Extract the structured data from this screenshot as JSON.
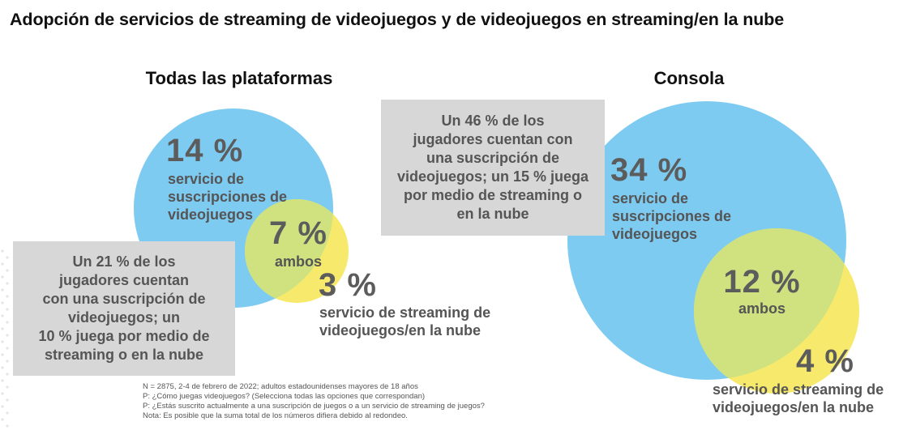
{
  "title": "Adopción de servicios de streaming de videojuegos y de videojuegos en streaming/en la nube",
  "colors": {
    "subscription": "#7ecbf2",
    "streaming": "#f7e96b",
    "overlap": "#cfe27f",
    "callout": "#d7d7d7"
  },
  "chart_data": [
    {
      "type": "venn",
      "title": "Todas las plataformas",
      "sets": [
        {
          "name": "servicio de suscripciones de videojuegos",
          "value": 14,
          "value_label": "14 %"
        },
        {
          "name": "servicio de streaming de videojuegos/en la nube",
          "value": 3,
          "value_label": "3 %"
        }
      ],
      "intersection": {
        "name": "ambos",
        "value": 7,
        "value_label": "7 %"
      },
      "callout": "Un 21 % de los jugadores cuentan con una suscripción de videojuegos; un 10 % juega por medio de streaming o en la nube"
    },
    {
      "type": "venn",
      "title": "Consola",
      "sets": [
        {
          "name": "servicio de suscripciones de videojuegos",
          "value": 34,
          "value_label": "34 %"
        },
        {
          "name": "servicio de streaming de videojuegos/en la nube",
          "value": 4,
          "value_label": "4 %"
        }
      ],
      "intersection": {
        "name": "ambos",
        "value": 12,
        "value_label": "12 %"
      },
      "callout": "Un 46 % de los jugadores cuentan con una suscripción de videojuegos; un 15 % juega por medio de streaming o en la nube"
    }
  ],
  "panels": {
    "left": {
      "title": "Todas las plataformas",
      "sub_pct": "14 %",
      "sub_label": "servicio de\nsuscripciones de\nvideojuegos",
      "both_pct": "7 %",
      "both_label": "ambos",
      "stream_pct": "3 %",
      "stream_label": "servicio de streaming de\nvideojuegos/en la nube",
      "callout": "Un 21 % de los\njugadores cuentan\ncon una suscripción de\nvideojuegos; un\n10 % juega por medio de\nstreaming o en la nube"
    },
    "right": {
      "title": "Consola",
      "sub_pct": "34 %",
      "sub_label": "servicio de\nsuscripciones de\nvideojuegos",
      "both_pct": "12 %",
      "both_label": "ambos",
      "stream_pct": "4 %",
      "stream_label": "servicio de streaming de\nvideojuegos/en la nube",
      "callout": "Un 46 % de los\njugadores cuentan con\nuna suscripción de\nvideojuegos; un 15 % juega\npor medio de streaming o\nen la nube"
    }
  },
  "footnotes": [
    "N = 2875, 2-4 de febrero de 2022; adultos estadounidenses mayores de 18 años",
    "P: ¿Cómo juegas videojuegos? (Selecciona todas las opciones que correspondan)",
    "P: ¿Estás suscrito actualmente a una suscripción de juegos o a un servicio de streaming de juegos?",
    "Nota: Es posible que la suma total de los números difiera debido al redondeo."
  ]
}
